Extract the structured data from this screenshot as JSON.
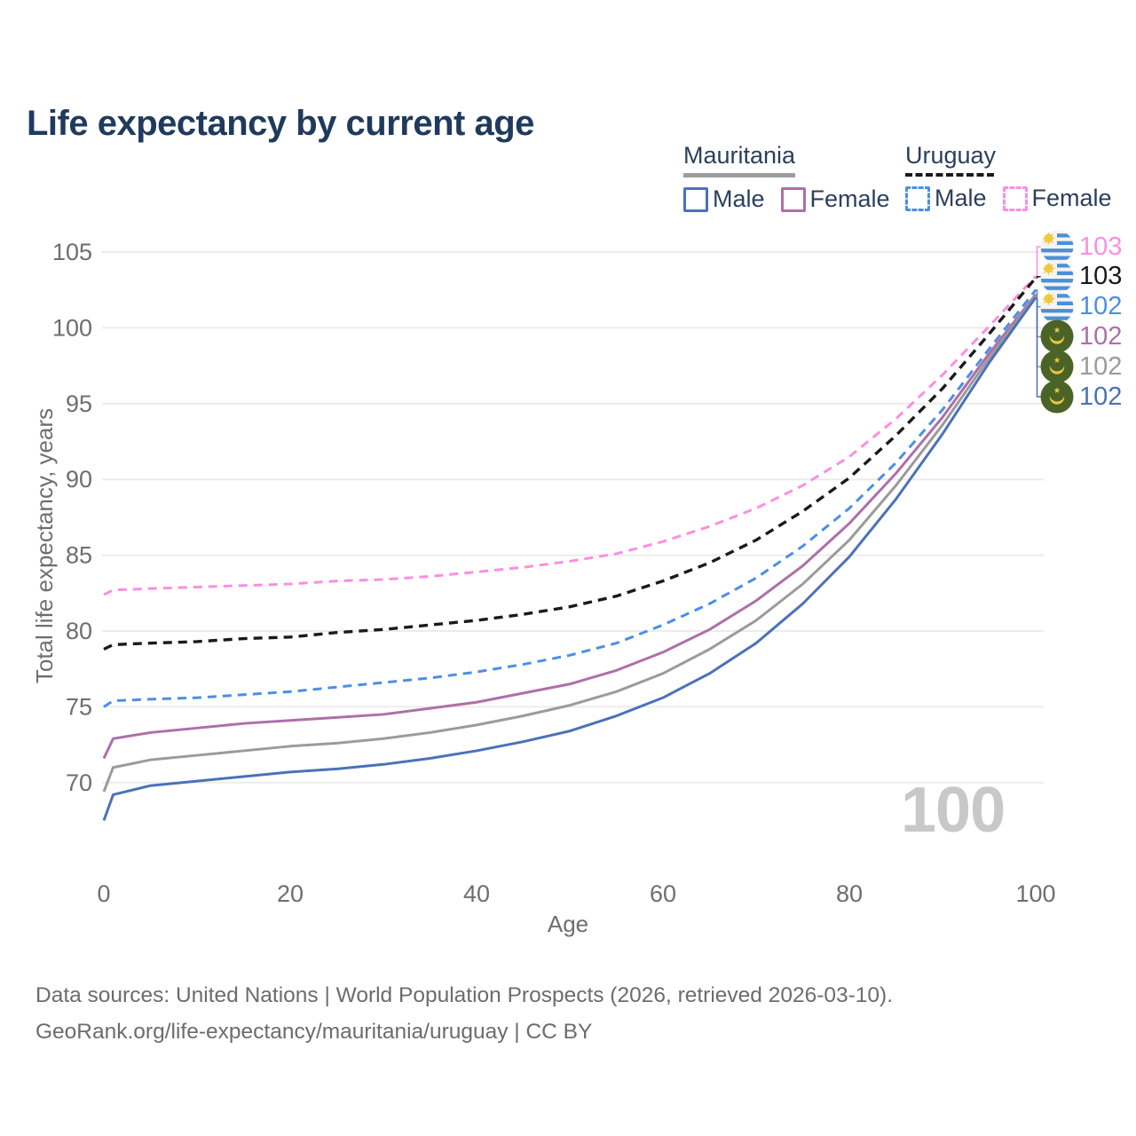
{
  "title": "Life expectancy by current age",
  "legend": {
    "groups": [
      {
        "country": "Mauritania",
        "line_style": "solid",
        "underline_color": "#9e9e9e",
        "items": [
          {
            "label": "Male",
            "color": "#4a72b8"
          },
          {
            "label": "Female",
            "color": "#ae6fa8"
          }
        ]
      },
      {
        "country": "Uruguay",
        "line_style": "dashed",
        "underline_color": "#1a1a1a",
        "items": [
          {
            "label": "Male",
            "color": "#4a8fe7"
          },
          {
            "label": "Female",
            "color": "#fc8ee0"
          }
        ]
      }
    ]
  },
  "watermark": "100",
  "footer": {
    "line1": "Data sources: United Nations | World Population Prospects (2026, retrieved 2026-03-10).",
    "line2": "GeoRank.org/life-expectancy/mauritania/uruguay | CC BY"
  },
  "end_labels": [
    {
      "flag": "uruguay",
      "value": "103",
      "color": "#fc8ee0"
    },
    {
      "flag": "uruguay",
      "value": "103",
      "color": "#1a1a1a"
    },
    {
      "flag": "uruguay",
      "value": "102",
      "color": "#4a8fe7"
    },
    {
      "flag": "mauritania",
      "value": "102",
      "color": "#ae6fa8"
    },
    {
      "flag": "mauritania",
      "value": "102",
      "color": "#9b9b9b"
    },
    {
      "flag": "mauritania",
      "value": "102",
      "color": "#4a72b8"
    }
  ],
  "chart_data": {
    "type": "line",
    "title": "Life expectancy by current age",
    "xlabel": "Age",
    "ylabel": "Total life expectancy, years",
    "xlim": [
      0,
      100
    ],
    "ylim": [
      66,
      105
    ],
    "xticks": [
      0,
      20,
      40,
      60,
      80,
      100
    ],
    "yticks": [
      70,
      75,
      80,
      85,
      90,
      95,
      100,
      105
    ],
    "grid": "horizontal",
    "legend_position": "top-right",
    "x": [
      0,
      1,
      5,
      10,
      15,
      20,
      25,
      30,
      35,
      40,
      45,
      50,
      55,
      60,
      65,
      70,
      75,
      80,
      85,
      90,
      95,
      100
    ],
    "series": [
      {
        "name": "Uruguay Female",
        "country": "Uruguay",
        "sex": "Female",
        "color": "#fc8ee0",
        "dash": "dashed",
        "end_label": 103,
        "values": [
          82.4,
          82.7,
          82.8,
          82.9,
          83.0,
          83.1,
          83.3,
          83.4,
          83.6,
          83.9,
          84.2,
          84.6,
          85.1,
          85.9,
          86.9,
          88.1,
          89.6,
          91.5,
          94.0,
          96.9,
          100.1,
          103.4
        ]
      },
      {
        "name": "Uruguay Both sexes",
        "country": "Uruguay",
        "sex": "Both",
        "color": "#1a1a1a",
        "dash": "dashed",
        "end_label": 103,
        "values": [
          78.8,
          79.1,
          79.2,
          79.3,
          79.5,
          79.6,
          79.9,
          80.1,
          80.4,
          80.7,
          81.1,
          81.6,
          82.3,
          83.3,
          84.5,
          86.0,
          87.9,
          90.1,
          92.9,
          96.0,
          99.6,
          103.3
        ]
      },
      {
        "name": "Uruguay Male",
        "country": "Uruguay",
        "sex": "Male",
        "color": "#4a8fe7",
        "dash": "dashed",
        "end_label": 102,
        "values": [
          75.0,
          75.4,
          75.5,
          75.6,
          75.8,
          76.0,
          76.3,
          76.6,
          76.9,
          77.3,
          77.8,
          78.4,
          79.2,
          80.4,
          81.8,
          83.5,
          85.6,
          88.1,
          91.1,
          94.6,
          98.6,
          102.5
        ]
      },
      {
        "name": "Mauritania Female",
        "country": "Mauritania",
        "sex": "Female",
        "color": "#ae6fa8",
        "dash": "solid",
        "end_label": 102,
        "values": [
          71.6,
          72.9,
          73.3,
          73.6,
          73.9,
          74.1,
          74.3,
          74.5,
          74.9,
          75.3,
          75.9,
          76.5,
          77.4,
          78.6,
          80.1,
          82.0,
          84.3,
          87.1,
          90.4,
          94.1,
          98.3,
          102.2
        ]
      },
      {
        "name": "Mauritania Both sexes",
        "country": "Mauritania",
        "sex": "Both",
        "color": "#9b9b9b",
        "dash": "solid",
        "end_label": 102,
        "values": [
          69.4,
          71.0,
          71.5,
          71.8,
          72.1,
          72.4,
          72.6,
          72.9,
          73.3,
          73.8,
          74.4,
          75.1,
          76.0,
          77.2,
          78.8,
          80.7,
          83.1,
          86.0,
          89.6,
          93.6,
          98.0,
          102.1
        ]
      },
      {
        "name": "Mauritania Male",
        "country": "Mauritania",
        "sex": "Male",
        "color": "#4a72b8",
        "dash": "solid",
        "end_label": 102,
        "values": [
          67.5,
          69.2,
          69.8,
          70.1,
          70.4,
          70.7,
          70.9,
          71.2,
          71.6,
          72.1,
          72.7,
          73.4,
          74.4,
          75.6,
          77.2,
          79.2,
          81.8,
          84.9,
          88.7,
          93.0,
          97.7,
          102.0
        ]
      }
    ]
  }
}
